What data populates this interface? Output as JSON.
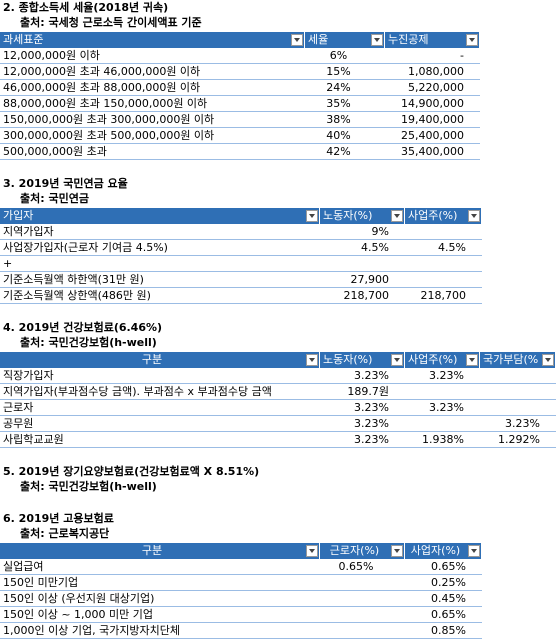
{
  "sections": [
    {
      "title": "2. 종합소득세 세율(2018년 귀속)",
      "source": "출처: 국세청 근로소득 간이세액표 기준",
      "table": {
        "header": [
          "과세표준",
          "세율",
          "누진공제"
        ],
        "rows": [
          [
            "12,000,000원 이하",
            "6%",
            "-"
          ],
          [
            "12,000,000원 초과 46,000,000원 이하",
            "15%",
            "1,080,000"
          ],
          [
            "46,000,000원 초과 88,000,000원 이하",
            "24%",
            "5,220,000"
          ],
          [
            "88,000,000원 초과 150,000,000원 이하",
            "35%",
            "14,900,000"
          ],
          [
            "150,000,000원 초과 300,000,000원 이하",
            "38%",
            "19,400,000"
          ],
          [
            "300,000,000원 초과 500,000,000원 이하",
            "40%",
            "25,400,000"
          ],
          [
            "500,000,000원 초과",
            "42%",
            "35,400,000"
          ]
        ]
      }
    },
    {
      "title": "3. 2019년 국민연금 요율",
      "source": "출처: 국민연금",
      "table": {
        "header": [
          "가입자",
          "노동자(%)",
          "사업주(%)"
        ],
        "rows": [
          [
            "지역가입자",
            "9%",
            null
          ],
          [
            "사업장가입자(근로자 기여금 4.5%)",
            "4.5%",
            "4.5%"
          ],
          [
            "+",
            null,
            null
          ],
          [
            "기준소득월액 하한액(31만 원)",
            "27,900",
            null
          ],
          [
            "기준소득월액 상한액(486만 원)",
            "218,700",
            "218,700"
          ]
        ]
      }
    },
    {
      "title": "4. 2019년 건강보험료(6.46%)",
      "source": "출처: 국민건강보험(h-well)",
      "table": {
        "header": [
          "구분",
          "노동자(%)",
          "사업주(%)",
          "국가부담(%"
        ],
        "rows": [
          [
            "직장가입자",
            "3.23%",
            "3.23%",
            null
          ],
          [
            "지역가입자(부과점수당 금액). 부과점수 x 부과점수당 금액",
            "189.7원",
            null,
            null
          ],
          [
            "근로자",
            "3.23%",
            "3.23%",
            null
          ],
          [
            "공무원",
            "3.23%",
            null,
            "3.23%"
          ],
          [
            "사립학교교원",
            "3.23%",
            "1.938%",
            "1.292%"
          ]
        ]
      }
    },
    {
      "title": "5. 2019년 장기요양보험료(건강보험료액 X 8.51%)",
      "source": "출처: 국민건강보험(h-well)"
    },
    {
      "title": "6. 2019년 고용보험료",
      "source": "출처: 근로복지공단",
      "table": {
        "header": [
          "구분",
          "근로자(%)",
          "사업자(%)"
        ],
        "rows": [
          [
            "실업급여",
            "0.65%",
            "0.65%"
          ],
          [
            "150인 미만기업",
            null,
            "0.25%"
          ],
          [
            "150인 이상 (우선지원 대상기업)",
            null,
            "0.45%"
          ],
          [
            "150인 이상 ~ 1,000 미만 기업",
            null,
            "0.65%"
          ],
          [
            "1,000인 이상 기업, 국가지방자치단체",
            null,
            "0.85%"
          ]
        ]
      }
    }
  ]
}
